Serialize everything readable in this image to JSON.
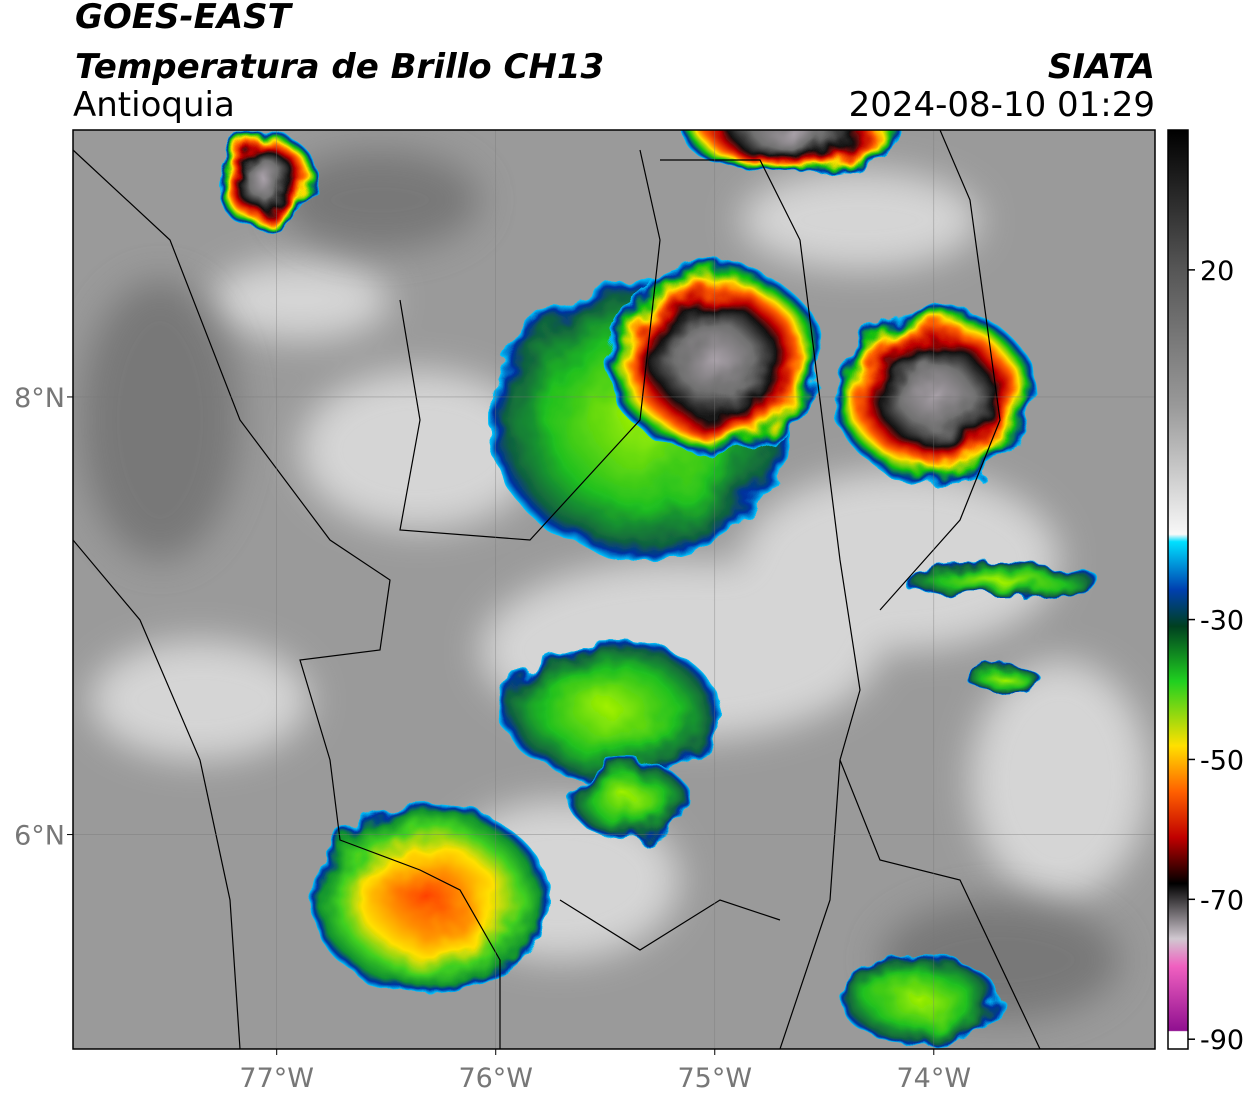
{
  "header": {
    "satellite": "GOES-EAST",
    "product": "Temperatura de Brillo CH13",
    "region": "Antioquia",
    "source": "SIATA",
    "datetime": "2024-08-10 01:29"
  },
  "map": {
    "lonlim": [
      -77.93,
      -72.99
    ],
    "latlim": [
      5.02,
      9.22
    ],
    "lon_ticks": [
      {
        "value": -77,
        "label": "77°W"
      },
      {
        "value": -76,
        "label": "76°W"
      },
      {
        "value": -75,
        "label": "75°W"
      },
      {
        "value": -74,
        "label": "74°W"
      }
    ],
    "lat_ticks": [
      {
        "value": 8,
        "label": "8°N"
      },
      {
        "value": 6,
        "label": "6°N"
      }
    ]
  },
  "colorbar": {
    "lim": [
      -91.4,
      40
    ],
    "ticks": [
      20,
      -30,
      -50,
      -70,
      -90
    ]
  }
}
